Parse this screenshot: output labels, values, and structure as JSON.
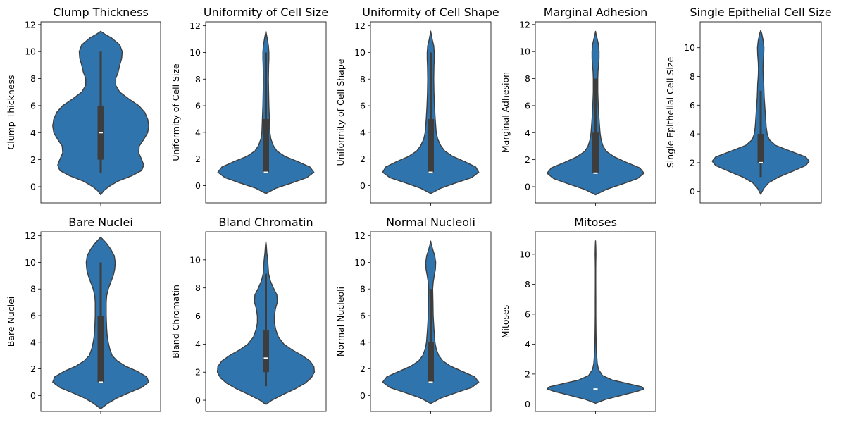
{
  "chart_data": [
    {
      "type": "violin",
      "title": "Clump Thickness",
      "ylabel": "Clump Thickness",
      "ylim": [
        -1.2,
        12.2
      ],
      "yticks": [
        0,
        2,
        4,
        6,
        8,
        10,
        12
      ],
      "summary": {
        "min": 1,
        "q1": 2,
        "median": 4,
        "q3": 6,
        "max": 10
      },
      "profile": [
        [
          -0.6,
          0
        ],
        [
          -0.3,
          0.06
        ],
        [
          0,
          0.16
        ],
        [
          0.4,
          0.34
        ],
        [
          0.8,
          0.62
        ],
        [
          1.2,
          0.82
        ],
        [
          1.6,
          0.86
        ],
        [
          2,
          0.82
        ],
        [
          2.5,
          0.76
        ],
        [
          3,
          0.77
        ],
        [
          3.5,
          0.86
        ],
        [
          4,
          0.94
        ],
        [
          4.5,
          0.96
        ],
        [
          5,
          0.94
        ],
        [
          5.5,
          0.88
        ],
        [
          6,
          0.76
        ],
        [
          6.5,
          0.56
        ],
        [
          7,
          0.38
        ],
        [
          7.5,
          0.3
        ],
        [
          8,
          0.3
        ],
        [
          8.5,
          0.35
        ],
        [
          9,
          0.38
        ],
        [
          9.5,
          0.42
        ],
        [
          10,
          0.43
        ],
        [
          10.5,
          0.38
        ],
        [
          11,
          0.22
        ],
        [
          11.3,
          0.08
        ],
        [
          11.5,
          0
        ]
      ]
    },
    {
      "type": "violin",
      "title": "Uniformity of Cell Size",
      "ylabel": "Uniformity of Cell Size",
      "ylim": [
        -1.3,
        12.3
      ],
      "yticks": [
        0,
        2,
        4,
        6,
        8,
        10,
        12
      ],
      "summary": {
        "min": 1,
        "q1": 1,
        "median": 1,
        "q3": 5,
        "max": 10
      },
      "profile": [
        [
          -0.6,
          0
        ],
        [
          -0.2,
          0.2
        ],
        [
          0.2,
          0.52
        ],
        [
          0.6,
          0.82
        ],
        [
          1,
          0.96
        ],
        [
          1.4,
          0.88
        ],
        [
          1.8,
          0.64
        ],
        [
          2.2,
          0.38
        ],
        [
          2.6,
          0.22
        ],
        [
          3,
          0.15
        ],
        [
          3.5,
          0.1
        ],
        [
          4,
          0.08
        ],
        [
          5,
          0.07
        ],
        [
          6,
          0.06
        ],
        [
          7,
          0.055
        ],
        [
          8,
          0.05
        ],
        [
          9,
          0.055
        ],
        [
          9.5,
          0.06
        ],
        [
          10,
          0.06
        ],
        [
          10.5,
          0.05
        ],
        [
          11,
          0.03
        ],
        [
          11.4,
          0.01
        ],
        [
          11.6,
          0
        ]
      ]
    },
    {
      "type": "violin",
      "title": "Uniformity of Cell Shape",
      "ylabel": "Uniformity of Cell Shape",
      "ylim": [
        -1.3,
        12.3
      ],
      "yticks": [
        0,
        2,
        4,
        6,
        8,
        10,
        12
      ],
      "summary": {
        "min": 1,
        "q1": 1,
        "median": 1,
        "q3": 5,
        "max": 10
      },
      "profile": [
        [
          -0.6,
          0
        ],
        [
          -0.2,
          0.2
        ],
        [
          0.2,
          0.5
        ],
        [
          0.6,
          0.82
        ],
        [
          1,
          0.96
        ],
        [
          1.4,
          0.9
        ],
        [
          1.8,
          0.68
        ],
        [
          2.2,
          0.44
        ],
        [
          2.6,
          0.28
        ],
        [
          3,
          0.2
        ],
        [
          3.5,
          0.14
        ],
        [
          4,
          0.11
        ],
        [
          5,
          0.09
        ],
        [
          6,
          0.075
        ],
        [
          7,
          0.065
        ],
        [
          8,
          0.06
        ],
        [
          9,
          0.065
        ],
        [
          9.5,
          0.07
        ],
        [
          10,
          0.07
        ],
        [
          10.5,
          0.06
        ],
        [
          11,
          0.03
        ],
        [
          11.4,
          0.01
        ],
        [
          11.6,
          0
        ]
      ]
    },
    {
      "type": "violin",
      "title": "Marginal Adhesion",
      "ylabel": "Marginal Adhesion",
      "ylim": [
        -1.2,
        12.2
      ],
      "yticks": [
        0,
        2,
        4,
        6,
        8,
        10,
        12
      ],
      "summary": {
        "min": 1,
        "q1": 1,
        "median": 1,
        "q3": 4,
        "max": 8
      },
      "profile": [
        [
          -0.6,
          0
        ],
        [
          -0.2,
          0.22
        ],
        [
          0.2,
          0.54
        ],
        [
          0.6,
          0.84
        ],
        [
          1,
          0.97
        ],
        [
          1.4,
          0.88
        ],
        [
          1.8,
          0.62
        ],
        [
          2.2,
          0.38
        ],
        [
          2.6,
          0.22
        ],
        [
          3,
          0.15
        ],
        [
          3.5,
          0.11
        ],
        [
          4,
          0.09
        ],
        [
          5,
          0.07
        ],
        [
          6,
          0.055
        ],
        [
          7,
          0.045
        ],
        [
          8,
          0.045
        ],
        [
          8.5,
          0.05
        ],
        [
          9,
          0.06
        ],
        [
          9.5,
          0.07
        ],
        [
          10,
          0.07
        ],
        [
          10.5,
          0.06
        ],
        [
          11,
          0.03
        ],
        [
          11.3,
          0.01
        ],
        [
          11.5,
          0
        ]
      ]
    },
    {
      "type": "violin",
      "title": "Single Epithelial Cell Size",
      "ylabel": "Single Epithelial Cell Size",
      "ylim": [
        -0.8,
        11.8
      ],
      "yticks": [
        0,
        2,
        4,
        6,
        8,
        10
      ],
      "summary": {
        "min": 1,
        "q1": 2,
        "median": 2,
        "q3": 4,
        "max": 7
      },
      "profile": [
        [
          -0.2,
          0
        ],
        [
          0.2,
          0.06
        ],
        [
          0.6,
          0.16
        ],
        [
          1,
          0.36
        ],
        [
          1.4,
          0.64
        ],
        [
          1.8,
          0.9
        ],
        [
          2.1,
          0.97
        ],
        [
          2.4,
          0.9
        ],
        [
          2.8,
          0.6
        ],
        [
          3.2,
          0.3
        ],
        [
          3.6,
          0.17
        ],
        [
          4,
          0.13
        ],
        [
          4.5,
          0.11
        ],
        [
          5,
          0.1
        ],
        [
          5.5,
          0.09
        ],
        [
          6,
          0.08
        ],
        [
          6.5,
          0.07
        ],
        [
          7,
          0.065
        ],
        [
          7.5,
          0.06
        ],
        [
          8,
          0.05
        ],
        [
          8.5,
          0.045
        ],
        [
          9,
          0.05
        ],
        [
          9.5,
          0.06
        ],
        [
          10,
          0.065
        ],
        [
          10.5,
          0.05
        ],
        [
          11,
          0.02
        ],
        [
          11.2,
          0
        ]
      ]
    },
    {
      "type": "violin",
      "title": "Bare Nuclei",
      "ylabel": "Bare Nuclei",
      "ylim": [
        -1.2,
        12.3
      ],
      "yticks": [
        0,
        2,
        4,
        6,
        8,
        10,
        12
      ],
      "summary": {
        "min": 1,
        "q1": 1,
        "median": 1,
        "q3": 6,
        "max": 10
      },
      "profile": [
        [
          -1,
          0
        ],
        [
          -0.6,
          0.14
        ],
        [
          -0.2,
          0.32
        ],
        [
          0.2,
          0.56
        ],
        [
          0.6,
          0.82
        ],
        [
          1,
          0.96
        ],
        [
          1.4,
          0.92
        ],
        [
          1.8,
          0.74
        ],
        [
          2.2,
          0.5
        ],
        [
          2.6,
          0.33
        ],
        [
          3,
          0.23
        ],
        [
          3.5,
          0.18
        ],
        [
          4,
          0.15
        ],
        [
          4.5,
          0.13
        ],
        [
          5,
          0.12
        ],
        [
          6,
          0.11
        ],
        [
          7,
          0.11
        ],
        [
          7.5,
          0.12
        ],
        [
          8,
          0.15
        ],
        [
          8.5,
          0.2
        ],
        [
          9,
          0.25
        ],
        [
          9.5,
          0.28
        ],
        [
          10,
          0.29
        ],
        [
          10.5,
          0.27
        ],
        [
          11,
          0.2
        ],
        [
          11.5,
          0.1
        ],
        [
          11.9,
          0
        ]
      ]
    },
    {
      "type": "violin",
      "title": "Bland Chromatin",
      "ylabel": "Bland Chromatin",
      "ylim": [
        -0.8,
        12.0
      ],
      "yticks": [
        0,
        2,
        4,
        6,
        8,
        10
      ],
      "summary": {
        "min": 1,
        "q1": 2,
        "median": 3,
        "q3": 5,
        "max": 9
      },
      "profile": [
        [
          -0.3,
          0
        ],
        [
          0,
          0.12
        ],
        [
          0.4,
          0.34
        ],
        [
          0.8,
          0.58
        ],
        [
          1.2,
          0.78
        ],
        [
          1.6,
          0.91
        ],
        [
          2,
          0.97
        ],
        [
          2.4,
          0.96
        ],
        [
          2.8,
          0.88
        ],
        [
          3.2,
          0.72
        ],
        [
          3.6,
          0.52
        ],
        [
          4,
          0.36
        ],
        [
          4.5,
          0.25
        ],
        [
          5,
          0.2
        ],
        [
          5.5,
          0.17
        ],
        [
          6,
          0.17
        ],
        [
          6.5,
          0.19
        ],
        [
          7,
          0.23
        ],
        [
          7.5,
          0.22
        ],
        [
          8,
          0.15
        ],
        [
          8.5,
          0.09
        ],
        [
          9,
          0.055
        ],
        [
          9.5,
          0.045
        ],
        [
          10,
          0.035
        ],
        [
          10.5,
          0.02
        ],
        [
          11,
          0.01
        ],
        [
          11.3,
          0
        ]
      ]
    },
    {
      "type": "violin",
      "title": "Normal Nucleoli",
      "ylabel": "Normal Nucleoli",
      "ylim": [
        -1.2,
        12.3
      ],
      "yticks": [
        0,
        2,
        4,
        6,
        8,
        10,
        12
      ],
      "summary": {
        "min": 1,
        "q1": 1,
        "median": 1,
        "q3": 4,
        "max": 8
      },
      "profile": [
        [
          -0.6,
          0
        ],
        [
          -0.2,
          0.2
        ],
        [
          0.2,
          0.5
        ],
        [
          0.6,
          0.82
        ],
        [
          1,
          0.96
        ],
        [
          1.4,
          0.88
        ],
        [
          1.8,
          0.64
        ],
        [
          2.2,
          0.4
        ],
        [
          2.6,
          0.24
        ],
        [
          3,
          0.16
        ],
        [
          3.5,
          0.11
        ],
        [
          4,
          0.085
        ],
        [
          5,
          0.065
        ],
        [
          6,
          0.05
        ],
        [
          7,
          0.045
        ],
        [
          8,
          0.04
        ],
        [
          8.5,
          0.05
        ],
        [
          9,
          0.07
        ],
        [
          9.5,
          0.095
        ],
        [
          10,
          0.1
        ],
        [
          10.5,
          0.08
        ],
        [
          11,
          0.04
        ],
        [
          11.4,
          0.01
        ],
        [
          11.6,
          0
        ]
      ]
    },
    {
      "type": "violin",
      "title": "Mitoses",
      "ylabel": "Mitoses",
      "ylim": [
        -0.5,
        11.5
      ],
      "yticks": [
        0,
        2,
        4,
        6,
        8,
        10
      ],
      "summary": {
        "min": 1,
        "q1": 1,
        "median": 1,
        "q3": 1,
        "max": 1
      },
      "profile": [
        [
          0.05,
          0
        ],
        [
          0.3,
          0.2
        ],
        [
          0.6,
          0.55
        ],
        [
          0.85,
          0.84
        ],
        [
          1,
          0.97
        ],
        [
          1.15,
          0.92
        ],
        [
          1.35,
          0.66
        ],
        [
          1.6,
          0.34
        ],
        [
          1.9,
          0.14
        ],
        [
          2.3,
          0.06
        ],
        [
          2.7,
          0.035
        ],
        [
          3,
          0.028
        ],
        [
          3.5,
          0.018
        ],
        [
          4,
          0.012
        ],
        [
          5,
          0.008
        ],
        [
          6,
          0.006
        ],
        [
          7,
          0.005
        ],
        [
          8,
          0.004
        ],
        [
          9,
          0.004
        ],
        [
          9.5,
          0.006
        ],
        [
          10,
          0.008
        ],
        [
          10.5,
          0.006
        ],
        [
          10.9,
          0
        ]
      ]
    }
  ],
  "colors": {
    "violin_fill": "#2f74ad",
    "violin_edge": "#3d3d3d",
    "box": "#3d3d3d",
    "median": "#ffffff"
  }
}
